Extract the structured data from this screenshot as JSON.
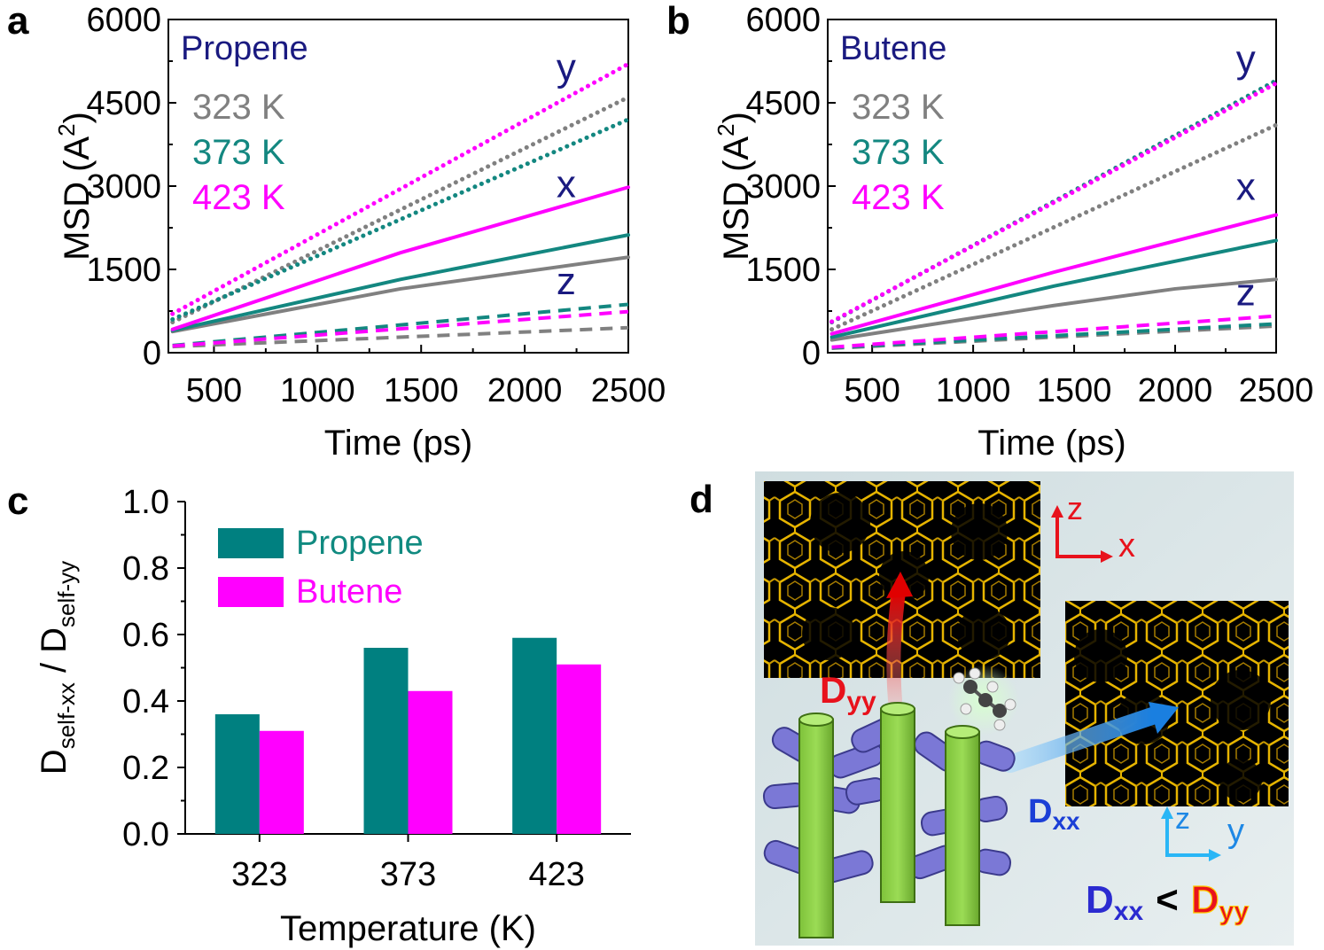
{
  "panel_labels": [
    "a",
    "b",
    "c",
    "d"
  ],
  "colors": {
    "k323": "#808080",
    "k373": "#138780",
    "k423": "#ff00ff",
    "navy": "#1a1a80",
    "teal_bar": "#008080",
    "magenta_bar": "#ff00ff",
    "red": "#e8121c",
    "blue": "#1b3fd6"
  },
  "chart_data": [
    {
      "id": "a",
      "type": "line",
      "title": "Propene",
      "xlabel": "Time (ps)",
      "ylabel": "MSD (A",
      "ylabel_sup": "2",
      "ylabel_end": ")",
      "xlim": [
        280,
        2500
      ],
      "ylim": [
        0,
        6000
      ],
      "xticks": [
        500,
        1000,
        1500,
        2000,
        2500
      ],
      "yticks": [
        0,
        1500,
        3000,
        4500,
        6000
      ],
      "legend": [
        "323 K",
        "373 K",
        "423 K"
      ],
      "annotations": [
        {
          "text": "y",
          "x": 2200,
          "y": 4900
        },
        {
          "text": "x",
          "x": 2200,
          "y": 2800
        },
        {
          "text": "z",
          "x": 2200,
          "y": 1050
        }
      ],
      "series": [
        {
          "name": "323 K y",
          "temp": "323 K",
          "dir": "y",
          "style": "dotted",
          "x": [
            300,
            2500
          ],
          "y": [
            550,
            4600
          ]
        },
        {
          "name": "373 K y",
          "temp": "373 K",
          "dir": "y",
          "style": "dotted",
          "x": [
            300,
            2500
          ],
          "y": [
            600,
            4200
          ]
        },
        {
          "name": "423 K y",
          "temp": "423 K",
          "dir": "y",
          "style": "dotted",
          "x": [
            300,
            2500
          ],
          "y": [
            700,
            5200
          ]
        },
        {
          "name": "323 K x",
          "temp": "323 K",
          "dir": "x",
          "style": "solid",
          "x": [
            300,
            1400,
            2500
          ],
          "y": [
            380,
            1150,
            1720
          ]
        },
        {
          "name": "373 K x",
          "temp": "373 K",
          "dir": "x",
          "style": "solid",
          "x": [
            300,
            1400,
            2500
          ],
          "y": [
            400,
            1320,
            2120
          ]
        },
        {
          "name": "423 K x",
          "temp": "423 K",
          "dir": "x",
          "style": "solid",
          "x": [
            300,
            1400,
            2500
          ],
          "y": [
            420,
            1800,
            2980
          ]
        },
        {
          "name": "323 K z",
          "temp": "323 K",
          "dir": "z",
          "style": "dashed",
          "x": [
            300,
            2500
          ],
          "y": [
            110,
            450
          ]
        },
        {
          "name": "373 K z",
          "temp": "373 K",
          "dir": "z",
          "style": "dashed",
          "x": [
            300,
            2500
          ],
          "y": [
            130,
            870
          ]
        },
        {
          "name": "423 K z",
          "temp": "423 K",
          "dir": "z",
          "style": "dashed",
          "x": [
            300,
            2500
          ],
          "y": [
            120,
            740
          ]
        }
      ]
    },
    {
      "id": "b",
      "type": "line",
      "title": "Butene",
      "xlabel": "Time (ps)",
      "ylabel": "MSD (A",
      "ylabel_sup": "2",
      "ylabel_end": ")",
      "xlim": [
        280,
        2500
      ],
      "ylim": [
        0,
        6000
      ],
      "xticks": [
        500,
        1000,
        1500,
        2000,
        2500
      ],
      "yticks": [
        0,
        1500,
        3000,
        4500,
        6000
      ],
      "legend": [
        "323 K",
        "373 K",
        "423 K"
      ],
      "annotations": [
        {
          "text": "y",
          "x": 2350,
          "y": 5050
        },
        {
          "text": "x",
          "x": 2350,
          "y": 2750
        },
        {
          "text": "z",
          "x": 2350,
          "y": 850
        }
      ],
      "series": [
        {
          "name": "323 K y",
          "temp": "323 K",
          "dir": "y",
          "style": "dotted",
          "x": [
            300,
            2500
          ],
          "y": [
            420,
            4100
          ]
        },
        {
          "name": "373 K y",
          "temp": "373 K",
          "dir": "y",
          "style": "dotted",
          "x": [
            300,
            2500
          ],
          "y": [
            550,
            4900
          ]
        },
        {
          "name": "423 K y",
          "temp": "423 K",
          "dir": "y",
          "style": "dotted",
          "x": [
            300,
            2500
          ],
          "y": [
            560,
            4850
          ]
        },
        {
          "name": "323 K x",
          "temp": "323 K",
          "dir": "x",
          "style": "solid",
          "x": [
            300,
            1400,
            2000,
            2500
          ],
          "y": [
            230,
            850,
            1150,
            1320
          ]
        },
        {
          "name": "373 K x",
          "temp": "373 K",
          "dir": "x",
          "style": "solid",
          "x": [
            300,
            1400,
            2500
          ],
          "y": [
            280,
            1200,
            2020
          ]
        },
        {
          "name": "423 K x",
          "temp": "423 K",
          "dir": "x",
          "style": "solid",
          "x": [
            300,
            1400,
            2500
          ],
          "y": [
            340,
            1450,
            2480
          ]
        },
        {
          "name": "323 K z",
          "temp": "323 K",
          "dir": "z",
          "style": "dashed",
          "x": [
            300,
            2500
          ],
          "y": [
            80,
            480
          ]
        },
        {
          "name": "373 K z",
          "temp": "373 K",
          "dir": "z",
          "style": "dashed",
          "x": [
            300,
            2500
          ],
          "y": [
            90,
            520
          ]
        },
        {
          "name": "423 K z",
          "temp": "423 K",
          "dir": "z",
          "style": "dashed",
          "x": [
            300,
            2500
          ],
          "y": [
            100,
            660
          ]
        }
      ]
    },
    {
      "id": "c",
      "type": "bar",
      "title": "",
      "xlabel": "Temperature (K)",
      "ylabel_main": "D",
      "ylabel_sub1": "self-xx",
      "ylabel_mid": " / D",
      "ylabel_sub2": "self-yy",
      "ylim": [
        0,
        1.0
      ],
      "yticks": [
        "0.0",
        "0.2",
        "0.4",
        "0.6",
        "0.8",
        "1.0"
      ],
      "categories": [
        "323",
        "373",
        "423"
      ],
      "series": [
        {
          "name": "Propene",
          "values": [
            0.36,
            0.56,
            0.59
          ]
        },
        {
          "name": "Butene",
          "values": [
            0.31,
            0.43,
            0.51
          ]
        }
      ]
    }
  ],
  "diagram": {
    "top_axes": {
      "vertical": "z",
      "horizontal": "x"
    },
    "bottom_axes": {
      "vertical": "z",
      "horizontal": "y"
    },
    "dyy_main": "D",
    "dyy_sub": "yy",
    "dxx_main": "D",
    "dxx_sub": "xx",
    "relation_sign": "<"
  }
}
